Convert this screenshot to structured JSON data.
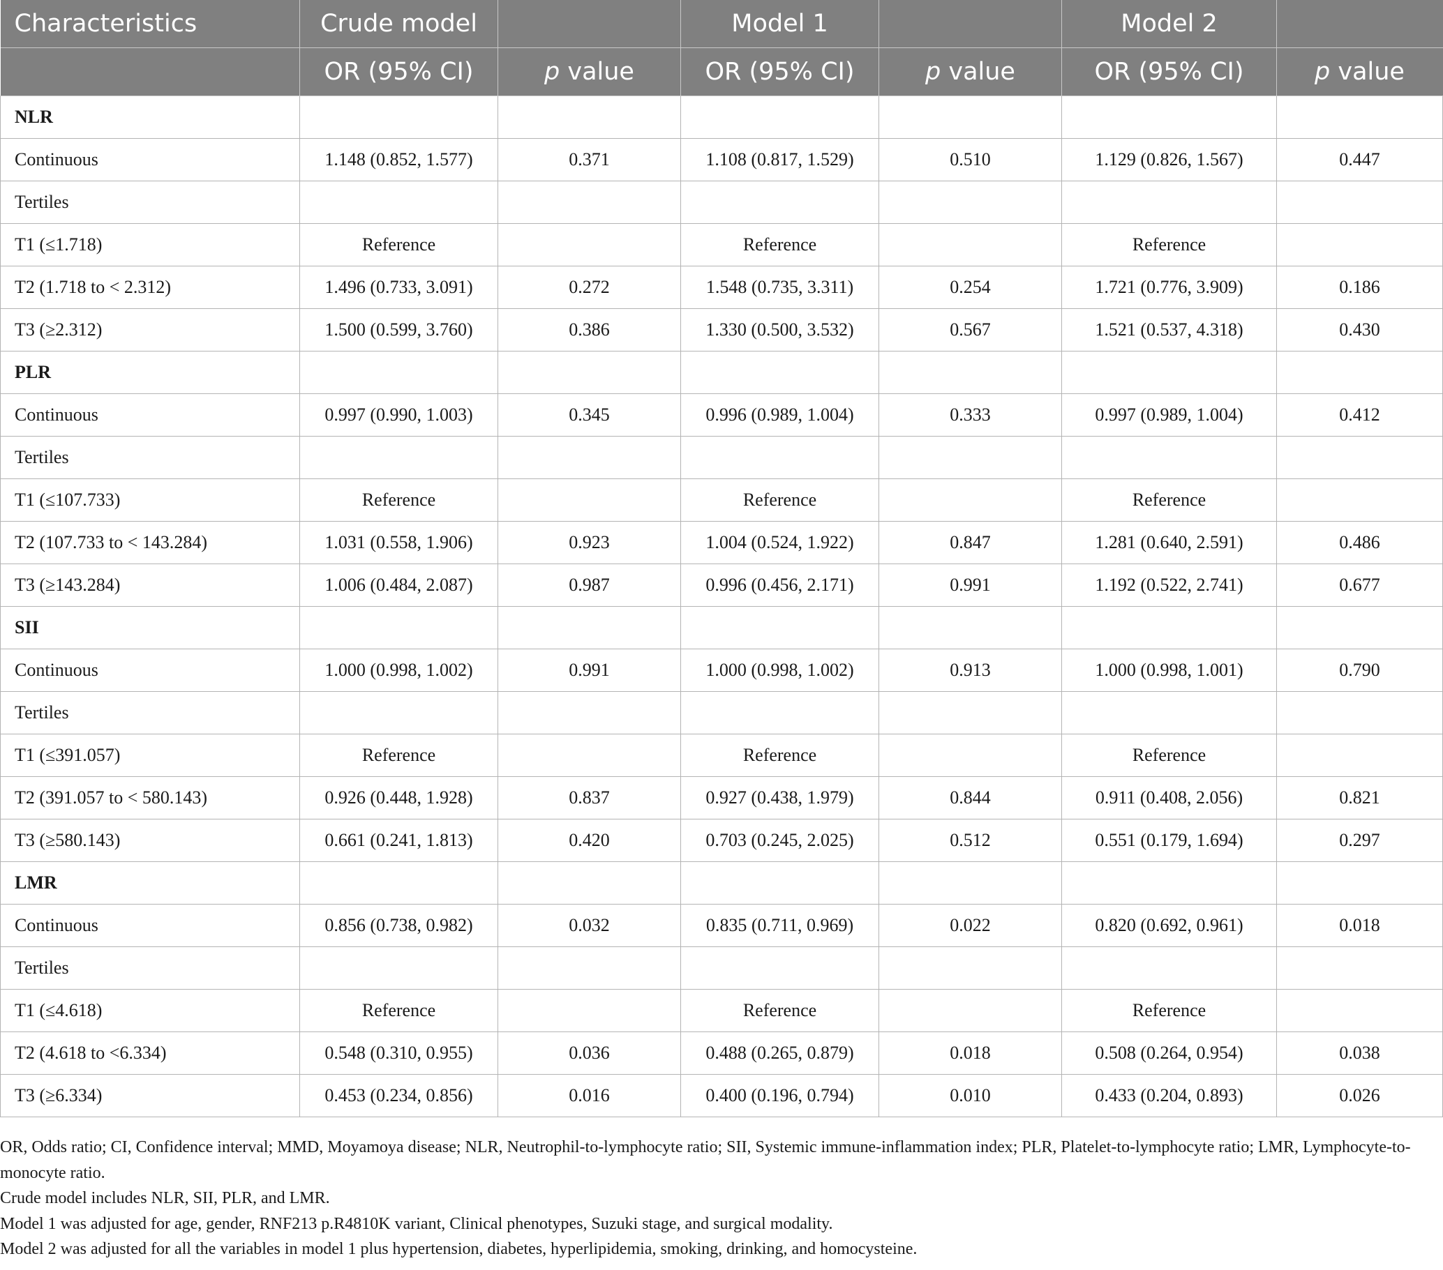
{
  "header": {
    "row1": {
      "characteristics": "Characteristics",
      "crude_model": "Crude model",
      "model1": "Model 1",
      "model2": "Model 2"
    },
    "row2": {
      "or_ci": "OR (95% CI)",
      "p_italic": "p",
      "p_rest": " value"
    }
  },
  "rows": [
    {
      "type": "group",
      "label": "NLR",
      "cells": [
        "",
        "",
        "",
        "",
        "",
        ""
      ]
    },
    {
      "type": "data",
      "label": "Continuous",
      "cells": [
        "1.148 (0.852, 1.577)",
        "0.371",
        "1.108 (0.817, 1.529)",
        "0.510",
        "1.129 (0.826, 1.567)",
        "0.447"
      ]
    },
    {
      "type": "data",
      "label": "Tertiles",
      "cells": [
        "",
        "",
        "",
        "",
        "",
        ""
      ]
    },
    {
      "type": "data",
      "label": "T1 (≤1.718)",
      "cells": [
        "Reference",
        "",
        "Reference",
        "",
        "Reference",
        ""
      ]
    },
    {
      "type": "data",
      "label": "T2 (1.718 to < 2.312)",
      "cells": [
        "1.496 (0.733, 3.091)",
        "0.272",
        "1.548 (0.735, 3.311)",
        "0.254",
        "1.721 (0.776, 3.909)",
        "0.186"
      ]
    },
    {
      "type": "data",
      "label": "T3 (≥2.312)",
      "cells": [
        "1.500 (0.599, 3.760)",
        "0.386",
        "1.330 (0.500, 3.532)",
        "0.567",
        "1.521 (0.537, 4.318)",
        "0.430"
      ]
    },
    {
      "type": "group",
      "label": "PLR",
      "cells": [
        "",
        "",
        "",
        "",
        "",
        ""
      ]
    },
    {
      "type": "data",
      "label": "Continuous",
      "cells": [
        "0.997 (0.990, 1.003)",
        "0.345",
        "0.996 (0.989, 1.004)",
        "0.333",
        "0.997 (0.989, 1.004)",
        "0.412"
      ]
    },
    {
      "type": "data",
      "label": "Tertiles",
      "cells": [
        "",
        "",
        "",
        "",
        "",
        ""
      ]
    },
    {
      "type": "data",
      "label": "T1 (≤107.733)",
      "cells": [
        "Reference",
        "",
        "Reference",
        "",
        "Reference",
        ""
      ]
    },
    {
      "type": "data",
      "label": "T2 (107.733 to < 143.284)",
      "cells": [
        "1.031 (0.558, 1.906)",
        "0.923",
        "1.004 (0.524, 1.922)",
        "0.847",
        "1.281 (0.640, 2.591)",
        "0.486"
      ]
    },
    {
      "type": "data",
      "label": "T3 (≥143.284)",
      "cells": [
        "1.006 (0.484, 2.087)",
        "0.987",
        "0.996 (0.456, 2.171)",
        "0.991",
        "1.192 (0.522, 2.741)",
        "0.677"
      ]
    },
    {
      "type": "group",
      "label": "SII",
      "cells": [
        "",
        "",
        "",
        "",
        "",
        ""
      ]
    },
    {
      "type": "data",
      "label": "Continuous",
      "cells": [
        "1.000 (0.998, 1.002)",
        "0.991",
        "1.000 (0.998, 1.002)",
        "0.913",
        "1.000 (0.998, 1.001)",
        "0.790"
      ]
    },
    {
      "type": "data",
      "label": "Tertiles",
      "cells": [
        "",
        "",
        "",
        "",
        "",
        ""
      ]
    },
    {
      "type": "data",
      "label": "T1 (≤391.057)",
      "cells": [
        "Reference",
        "",
        "Reference",
        "",
        "Reference",
        ""
      ]
    },
    {
      "type": "data",
      "label": "T2 (391.057 to < 580.143)",
      "cells": [
        "0.926 (0.448, 1.928)",
        "0.837",
        "0.927 (0.438, 1.979)",
        "0.844",
        "0.911 (0.408, 2.056)",
        "0.821"
      ]
    },
    {
      "type": "data",
      "label": "T3 (≥580.143)",
      "cells": [
        "0.661 (0.241, 1.813)",
        "0.420",
        "0.703 (0.245, 2.025)",
        "0.512",
        "0.551 (0.179, 1.694)",
        "0.297"
      ]
    },
    {
      "type": "group",
      "label": "LMR",
      "cells": [
        "",
        "",
        "",
        "",
        "",
        ""
      ]
    },
    {
      "type": "data",
      "label": "Continuous",
      "cells": [
        "0.856 (0.738, 0.982)",
        "0.032",
        "0.835 (0.711, 0.969)",
        "0.022",
        "0.820 (0.692, 0.961)",
        "0.018"
      ]
    },
    {
      "type": "data",
      "label": "Tertiles",
      "cells": [
        "",
        "",
        "",
        "",
        "",
        ""
      ]
    },
    {
      "type": "data",
      "label": "T1 (≤4.618)",
      "cells": [
        "Reference",
        "",
        "Reference",
        "",
        "Reference",
        ""
      ]
    },
    {
      "type": "data",
      "label": "T2 (4.618 to <6.334)",
      "cells": [
        "0.548 (0.310, 0.955)",
        "0.036",
        "0.488 (0.265, 0.879)",
        "0.018",
        "0.508 (0.264, 0.954)",
        "0.038"
      ]
    },
    {
      "type": "data",
      "label": "T3 (≥6.334)",
      "cells": [
        "0.453 (0.234, 0.856)",
        "0.016",
        "0.400 (0.196, 0.794)",
        "0.010",
        "0.433 (0.204, 0.893)",
        "0.026"
      ]
    }
  ],
  "footnotes": [
    "OR, Odds ratio; CI, Confidence interval; MMD, Moyamoya disease; NLR, Neutrophil-to-lymphocyte ratio; SII, Systemic immune-inflammation index; PLR, Platelet-to-lymphocyte ratio; LMR, Lymphocyte-to-monocyte ratio.",
    "Crude model includes NLR, SII, PLR, and LMR.",
    "Model 1 was adjusted for age, gender, RNF213 p.R4810K variant, Clinical phenotypes, Suzuki stage, and surgical modality.",
    "Model 2 was adjusted for all the variables in model 1 plus hypertension, diabetes, hyperlipidemia, smoking, drinking, and homocysteine."
  ],
  "colors": {
    "header_bg": "#808080",
    "header_text": "#ffffff",
    "grid": "#b4b4b4",
    "body_text": "#1a1a1a"
  }
}
